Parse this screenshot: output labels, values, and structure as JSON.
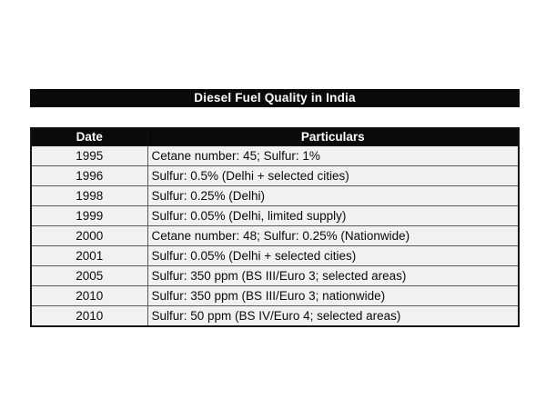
{
  "title_bar": {
    "text": "Diesel Fuel Quality in India",
    "bg_color": "#0a0a0a",
    "text_color": "#ffffff"
  },
  "table": {
    "columns": [
      "Date",
      "Particulars"
    ],
    "rows": [
      {
        "date": "1995",
        "particulars": "Cetane number: 45; Sulfur: 1%"
      },
      {
        "date": "1996",
        "particulars": "Sulfur: 0.5% (Delhi + selected cities)"
      },
      {
        "date": "1998",
        "particulars": "Sulfur: 0.25% (Delhi)"
      },
      {
        "date": "1999",
        "particulars": "Sulfur: 0.05% (Delhi, limited supply)"
      },
      {
        "date": "2000",
        "particulars": "Cetane number: 48; Sulfur: 0.25% (Nationwide)"
      },
      {
        "date": "2001",
        "particulars": "Sulfur: 0.05% (Delhi + selected cities)"
      },
      {
        "date": "2005",
        "particulars": "Sulfur: 350 ppm (BS III/Euro 3; selected areas)"
      },
      {
        "date": "2010",
        "particulars": "Sulfur: 350 ppm (BS III/Euro 3; nationwide)"
      },
      {
        "date": "2010",
        "particulars": "Sulfur: 50 ppm (BS IV/Euro 4; selected areas)"
      }
    ],
    "header_bg_color": "#0a0a0a",
    "header_text_color": "#ffffff",
    "row_bg_color": "#f1f1f1",
    "border_color": "#5a5a5a"
  },
  "chart_data": {
    "type": "table",
    "title": "Diesel Fuel Quality in India",
    "columns": [
      "Date",
      "Particulars"
    ],
    "rows": [
      [
        "1995",
        "Cetane number: 45; Sulfur: 1%"
      ],
      [
        "1996",
        "Sulfur: 0.5% (Delhi + selected cities)"
      ],
      [
        "1998",
        "Sulfur: 0.25% (Delhi)"
      ],
      [
        "1999",
        "Sulfur: 0.05% (Delhi, limited supply)"
      ],
      [
        "2000",
        "Cetane number: 48; Sulfur: 0.25% (Nationwide)"
      ],
      [
        "2001",
        "Sulfur: 0.05% (Delhi + selected cities)"
      ],
      [
        "2005",
        "Sulfur: 350 ppm (BS III/Euro 3; selected areas)"
      ],
      [
        "2010",
        "Sulfur: 350 ppm (BS III/Euro 3; nationwide)"
      ],
      [
        "2010",
        "Sulfur: 50 ppm (BS IV/Euro 4; selected areas)"
      ]
    ]
  }
}
